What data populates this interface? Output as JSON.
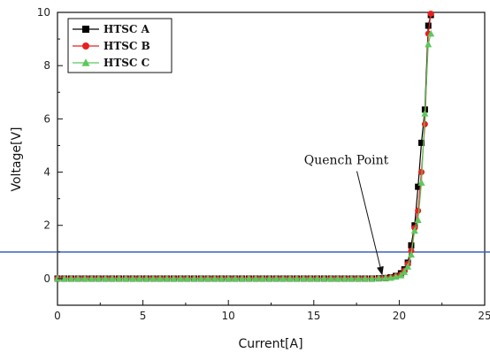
{
  "chart_data": {
    "type": "line",
    "xlabel": "Current[A]",
    "ylabel": "Voltage[V]",
    "xlim": [
      0,
      25
    ],
    "ylim": [
      -1,
      10
    ],
    "xticks": [
      0,
      5,
      10,
      15,
      20,
      25
    ],
    "yticks": [
      0,
      2,
      4,
      6,
      8,
      10
    ],
    "grid": false,
    "legend_position": "top-left",
    "reference_line": {
      "y": 1.0,
      "color": "#3f5fbf"
    },
    "annotation": {
      "text": "Quench Point",
      "target_x": 19.1,
      "target_y": 0.05,
      "text_anchor_x": 16.9,
      "text_anchor_y": 4.3
    },
    "series": [
      {
        "name": "HTSC A",
        "color": "#000000",
        "marker": "square",
        "x": [
          0.0,
          0.4,
          0.8,
          1.2,
          1.6,
          2.0,
          2.4,
          2.8,
          3.2,
          3.6,
          4.0,
          4.4,
          4.8,
          5.2,
          5.6,
          6.0,
          6.4,
          6.8,
          7.2,
          7.6,
          8.0,
          8.4,
          8.8,
          9.2,
          9.6,
          10.0,
          10.4,
          10.8,
          11.2,
          11.6,
          12.0,
          12.4,
          12.8,
          13.2,
          13.6,
          14.0,
          14.4,
          14.8,
          15.2,
          15.6,
          16.0,
          16.4,
          16.8,
          17.2,
          17.6,
          18.0,
          18.4,
          18.8,
          19.2,
          19.5,
          19.8,
          20.1,
          20.3,
          20.5,
          20.7,
          20.9,
          21.1,
          21.3,
          21.5,
          21.7,
          21.85
        ],
        "y": [
          0,
          0,
          0,
          0,
          0,
          0,
          0,
          0,
          0,
          0,
          0,
          0,
          0,
          0,
          0,
          0,
          0,
          0,
          0,
          0,
          0,
          0,
          0,
          0,
          0,
          0,
          0,
          0,
          0,
          0,
          0,
          0,
          0,
          0,
          0,
          0,
          0,
          0,
          0,
          0,
          0,
          0,
          0,
          0,
          0,
          0,
          0,
          0.01,
          0.02,
          0.05,
          0.1,
          0.2,
          0.35,
          0.6,
          1.25,
          2.0,
          3.45,
          5.1,
          6.35,
          9.5,
          9.9
        ]
      },
      {
        "name": "HTSC B",
        "color": "#e82020",
        "marker": "circle",
        "x": [
          0.0,
          0.4,
          0.8,
          1.2,
          1.6,
          2.0,
          2.4,
          2.8,
          3.2,
          3.6,
          4.0,
          4.4,
          4.8,
          5.2,
          5.6,
          6.0,
          6.4,
          6.8,
          7.2,
          7.6,
          8.0,
          8.4,
          8.8,
          9.2,
          9.6,
          10.0,
          10.4,
          10.8,
          11.2,
          11.6,
          12.0,
          12.4,
          12.8,
          13.2,
          13.6,
          14.0,
          14.4,
          14.8,
          15.2,
          15.6,
          16.0,
          16.4,
          16.8,
          17.2,
          17.6,
          18.0,
          18.4,
          18.8,
          19.2,
          19.5,
          19.8,
          20.1,
          20.3,
          20.5,
          20.7,
          20.9,
          21.1,
          21.3,
          21.5,
          21.7,
          21.85
        ],
        "y": [
          0,
          0,
          0,
          0,
          0,
          0,
          0,
          0,
          0,
          0,
          0,
          0,
          0,
          0,
          0,
          0,
          0,
          0,
          0,
          0,
          0,
          0,
          0,
          0,
          0,
          0,
          0,
          0,
          0,
          0,
          0,
          0,
          0,
          0,
          0,
          0,
          0,
          0,
          0,
          0,
          0,
          0,
          0,
          0,
          0,
          0,
          0,
          0.01,
          0.02,
          0.04,
          0.08,
          0.15,
          0.3,
          0.55,
          1.05,
          1.9,
          2.55,
          4.0,
          5.8,
          9.2,
          9.95
        ]
      },
      {
        "name": "HTSC C",
        "color": "#5cc85c",
        "marker": "triangle",
        "x": [
          0.0,
          0.4,
          0.8,
          1.2,
          1.6,
          2.0,
          2.4,
          2.8,
          3.2,
          3.6,
          4.0,
          4.4,
          4.8,
          5.2,
          5.6,
          6.0,
          6.4,
          6.8,
          7.2,
          7.6,
          8.0,
          8.4,
          8.8,
          9.2,
          9.6,
          10.0,
          10.4,
          10.8,
          11.2,
          11.6,
          12.0,
          12.4,
          12.8,
          13.2,
          13.6,
          14.0,
          14.4,
          14.8,
          15.2,
          15.6,
          16.0,
          16.4,
          16.8,
          17.2,
          17.6,
          18.0,
          18.4,
          18.8,
          19.2,
          19.5,
          19.8,
          20.1,
          20.3,
          20.5,
          20.7,
          20.9,
          21.1,
          21.3,
          21.5,
          21.7,
          21.85
        ],
        "y": [
          0,
          0,
          0,
          0,
          0,
          0,
          0,
          0,
          0,
          0,
          0,
          0,
          0,
          0,
          0,
          0,
          0,
          0,
          0,
          0,
          0,
          0,
          0,
          0,
          0,
          0,
          0,
          0,
          0,
          0,
          0,
          0,
          0,
          0,
          0,
          0,
          0,
          0,
          0,
          0,
          0,
          0,
          0,
          0,
          0,
          0,
          0,
          0.01,
          0.02,
          0.03,
          0.07,
          0.12,
          0.25,
          0.45,
          0.9,
          1.8,
          2.2,
          3.6,
          6.2,
          8.8,
          9.2
        ]
      }
    ]
  }
}
